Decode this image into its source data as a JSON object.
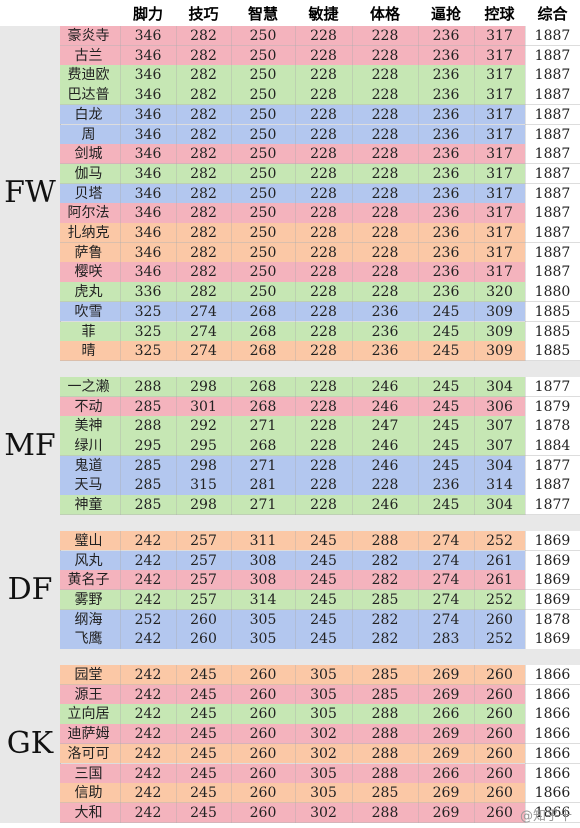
{
  "headers": [
    "脚力",
    "技巧",
    "智慧",
    "敏捷",
    "体格",
    "逼抢",
    "控球",
    "综合"
  ],
  "colors": {
    "pink": "#f4b3bd",
    "blue": "#b3c7ef",
    "green": "#c6e7b4",
    "orange": "#fbc8a6",
    "band": "#e8e8e8"
  },
  "groups": [
    {
      "label": "FW",
      "rows": [
        {
          "name": "豪炎寺",
          "stats": [
            346,
            282,
            250,
            228,
            228,
            236,
            317
          ],
          "total": 1887,
          "color": "pink"
        },
        {
          "name": "古兰",
          "stats": [
            346,
            282,
            250,
            228,
            228,
            236,
            317
          ],
          "total": 1887,
          "color": "pink"
        },
        {
          "name": "费迪欧",
          "stats": [
            346,
            282,
            250,
            228,
            228,
            236,
            317
          ],
          "total": 1887,
          "color": "green"
        },
        {
          "name": "巴达普",
          "stats": [
            346,
            282,
            250,
            228,
            228,
            236,
            317
          ],
          "total": 1887,
          "color": "green"
        },
        {
          "name": "白龙",
          "stats": [
            346,
            282,
            250,
            228,
            228,
            236,
            317
          ],
          "total": 1887,
          "color": "blue"
        },
        {
          "name": "周",
          "stats": [
            346,
            282,
            250,
            228,
            228,
            236,
            317
          ],
          "total": 1887,
          "color": "blue"
        },
        {
          "name": "剑城",
          "stats": [
            346,
            282,
            250,
            228,
            228,
            236,
            317
          ],
          "total": 1887,
          "color": "pink"
        },
        {
          "name": "伽马",
          "stats": [
            346,
            282,
            250,
            228,
            228,
            236,
            317
          ],
          "total": 1887,
          "color": "green"
        },
        {
          "name": "贝塔",
          "stats": [
            346,
            282,
            250,
            228,
            228,
            236,
            317
          ],
          "total": 1887,
          "color": "blue"
        },
        {
          "name": "阿尔法",
          "stats": [
            346,
            282,
            250,
            228,
            228,
            236,
            317
          ],
          "total": 1887,
          "color": "pink"
        },
        {
          "name": "扎纳克",
          "stats": [
            346,
            282,
            250,
            228,
            228,
            236,
            317
          ],
          "total": 1887,
          "color": "orange"
        },
        {
          "name": "萨鲁",
          "stats": [
            346,
            282,
            250,
            228,
            228,
            236,
            317
          ],
          "total": 1887,
          "color": "orange"
        },
        {
          "name": "樱咲",
          "stats": [
            346,
            282,
            250,
            228,
            228,
            236,
            317
          ],
          "total": 1887,
          "color": "pink"
        },
        {
          "name": "虎丸",
          "stats": [
            336,
            282,
            250,
            228,
            228,
            236,
            320
          ],
          "total": 1880,
          "color": "green"
        },
        {
          "name": "吹雪",
          "stats": [
            325,
            274,
            268,
            228,
            236,
            245,
            309
          ],
          "total": 1885,
          "color": "blue"
        },
        {
          "name": "菲",
          "stats": [
            325,
            274,
            268,
            228,
            236,
            245,
            309
          ],
          "total": 1885,
          "color": "green"
        },
        {
          "name": "晴",
          "stats": [
            325,
            274,
            268,
            228,
            236,
            245,
            309
          ],
          "total": 1885,
          "color": "orange"
        }
      ]
    },
    {
      "label": "MF",
      "rows": [
        {
          "name": "一之濑",
          "stats": [
            288,
            298,
            268,
            228,
            246,
            245,
            304
          ],
          "total": 1877,
          "color": "green"
        },
        {
          "name": "不动",
          "stats": [
            285,
            301,
            268,
            228,
            246,
            245,
            306
          ],
          "total": 1879,
          "color": "pink"
        },
        {
          "name": "美神",
          "stats": [
            288,
            292,
            271,
            228,
            247,
            245,
            307
          ],
          "total": 1878,
          "color": "green"
        },
        {
          "name": "绿川",
          "stats": [
            295,
            295,
            268,
            228,
            246,
            245,
            307
          ],
          "total": 1884,
          "color": "green"
        },
        {
          "name": "鬼道",
          "stats": [
            285,
            298,
            271,
            228,
            246,
            245,
            304
          ],
          "total": 1877,
          "color": "blue"
        },
        {
          "name": "天马",
          "stats": [
            285,
            315,
            281,
            228,
            228,
            236,
            314
          ],
          "total": 1887,
          "color": "blue"
        },
        {
          "name": "神童",
          "stats": [
            285,
            298,
            271,
            228,
            246,
            245,
            304
          ],
          "total": 1877,
          "color": "green"
        }
      ]
    },
    {
      "label": "DF",
      "rows": [
        {
          "name": "璧山",
          "stats": [
            242,
            257,
            311,
            245,
            288,
            274,
            252
          ],
          "total": 1869,
          "color": "orange"
        },
        {
          "name": "风丸",
          "stats": [
            242,
            257,
            308,
            245,
            282,
            274,
            261
          ],
          "total": 1869,
          "color": "blue"
        },
        {
          "name": "黄名子",
          "stats": [
            242,
            257,
            308,
            245,
            282,
            274,
            261
          ],
          "total": 1869,
          "color": "pink"
        },
        {
          "name": "雾野",
          "stats": [
            242,
            257,
            314,
            245,
            285,
            274,
            252
          ],
          "total": 1869,
          "color": "green"
        },
        {
          "name": "纲海",
          "stats": [
            252,
            260,
            305,
            245,
            282,
            274,
            260
          ],
          "total": 1878,
          "color": "blue"
        },
        {
          "name": "飞鹰",
          "stats": [
            242,
            260,
            305,
            245,
            282,
            283,
            252
          ],
          "total": 1869,
          "color": "blue"
        }
      ]
    },
    {
      "label": "GK",
      "rows": [
        {
          "name": "园堂",
          "stats": [
            242,
            245,
            260,
            305,
            285,
            269,
            260
          ],
          "total": 1866,
          "color": "orange"
        },
        {
          "name": "源王",
          "stats": [
            242,
            245,
            260,
            305,
            285,
            269,
            260
          ],
          "total": 1866,
          "color": "pink"
        },
        {
          "name": "立向居",
          "stats": [
            242,
            245,
            260,
            305,
            288,
            266,
            260
          ],
          "total": 1866,
          "color": "green"
        },
        {
          "name": "迪萨姆",
          "stats": [
            242,
            245,
            260,
            302,
            288,
            269,
            260
          ],
          "total": 1866,
          "color": "pink"
        },
        {
          "name": "洛可可",
          "stats": [
            242,
            245,
            260,
            302,
            288,
            269,
            260
          ],
          "total": 1866,
          "color": "orange"
        },
        {
          "name": "三国",
          "stats": [
            242,
            245,
            260,
            305,
            288,
            266,
            260
          ],
          "total": 1866,
          "color": "pink"
        },
        {
          "name": "信助",
          "stats": [
            242,
            245,
            260,
            305,
            285,
            269,
            260
          ],
          "total": 1866,
          "color": "orange"
        },
        {
          "name": "大和",
          "stats": [
            242,
            245,
            260,
            302,
            288,
            269,
            260
          ],
          "total": 1866,
          "color": "pink"
        }
      ]
    }
  ],
  "watermark": "@知乎十"
}
